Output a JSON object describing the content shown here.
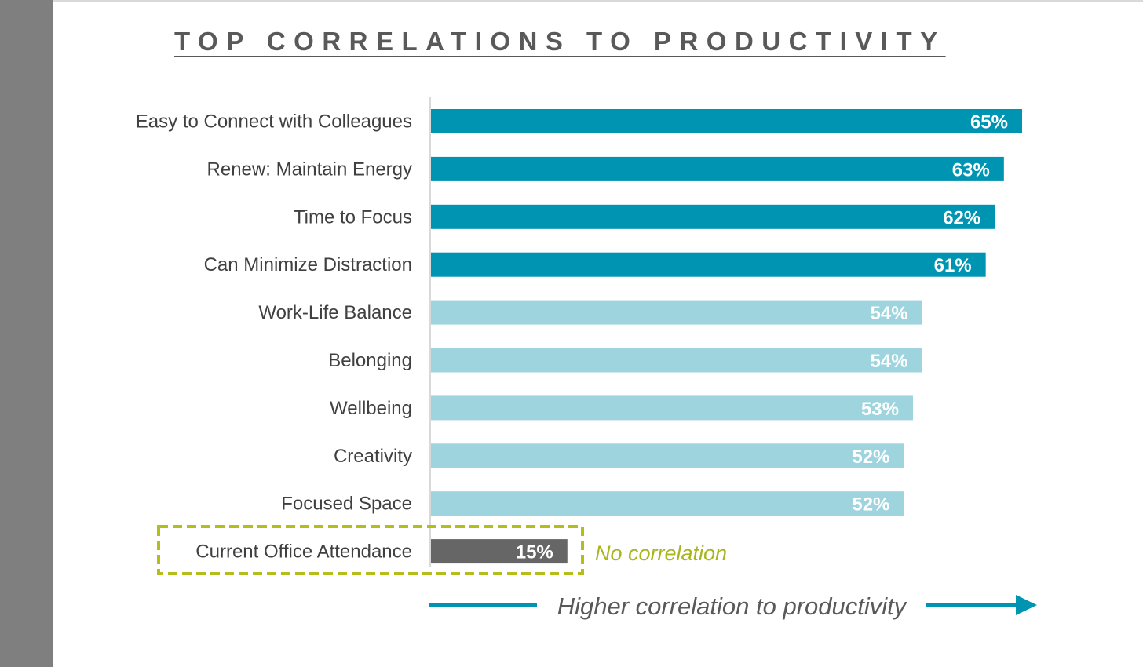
{
  "title": "TOP CORRELATIONS TO PRODUCTIVITY",
  "colors": {
    "strong": "#0094b3",
    "moderate": "#9dd4de",
    "none": "#666666",
    "highlight": "#b5bd1a",
    "arrow": "#0094b3"
  },
  "chart_data": {
    "type": "bar",
    "orientation": "horizontal",
    "title": "TOP CORRELATIONS TO PRODUCTIVITY",
    "xlim": [
      0,
      70
    ],
    "grid": false,
    "categories": [
      "Easy to Connect with Colleagues",
      "Renew: Maintain Energy",
      "Time to Focus",
      "Can Minimize Distraction",
      "Work-Life Balance",
      "Belonging",
      "Wellbeing",
      "Creativity",
      "Focused Space",
      "Current Office Attendance"
    ],
    "values": [
      65,
      63,
      62,
      61,
      54,
      54,
      53,
      52,
      52,
      15
    ],
    "value_labels": [
      "65%",
      "63%",
      "62%",
      "61%",
      "54%",
      "54%",
      "53%",
      "52%",
      "52%",
      "15%"
    ],
    "tiers": [
      "strong",
      "strong",
      "strong",
      "strong",
      "moderate",
      "moderate",
      "moderate",
      "moderate",
      "moderate",
      "none"
    ],
    "annotations": {
      "no_correlation": "No correlation",
      "arrow": "Higher correlation to productivity"
    }
  }
}
